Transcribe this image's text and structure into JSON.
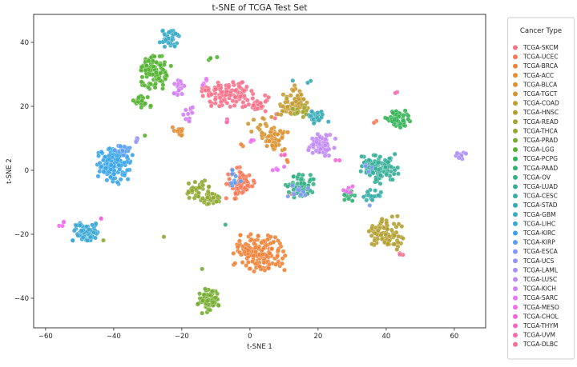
{
  "title": "t-SNE of TCGA Test Set",
  "axes": {
    "xlabel": "t-SNE 1",
    "ylabel": "t-SNE 2",
    "x_ticks": [
      -60,
      -40,
      -20,
      0,
      20,
      40,
      60
    ],
    "y_ticks": [
      -40,
      -20,
      0,
      20,
      40
    ],
    "x_range": [
      -63.5,
      69.2
    ],
    "y_range": [
      -49.25,
      48.75
    ],
    "text_color": "#262626",
    "axis_color": "#262626"
  },
  "legend": {
    "title": "Cancer Type",
    "border_color": "#cfcfcf",
    "background": "#ffffff"
  },
  "marker": {
    "radius": 2.7,
    "fill_opacity": 0.9,
    "edge_color": "#ffffff",
    "edge_opacity": 0.55,
    "edge_width": 0.5
  },
  "chart_data": {
    "type": "scatter",
    "title": "t-SNE of TCGA Test Set",
    "xlabel": "t-SNE 1",
    "ylabel": "t-SNE 2",
    "xlim": [
      -63.5,
      69.2
    ],
    "ylim": [
      -49.25,
      48.75
    ],
    "grid": false,
    "legend_position": "right-outside",
    "note": "clusters are [center_x, center_y, spread_x, spread_y, n_points] estimated from the figure",
    "series": [
      {
        "name": "TCGA-SKCM",
        "color": "#f77189",
        "clusters": [
          [
            -6.5,
            24,
            4.4,
            2.5,
            105
          ],
          [
            2.5,
            20.5,
            2,
            1.6,
            25
          ],
          [
            7.5,
            17,
            0.8,
            0.8,
            3
          ]
        ]
      },
      {
        "name": "TCGA-UCEC",
        "color": "#f77a58",
        "clusters": [
          [
            -3,
            -4,
            2.6,
            3,
            70
          ],
          [
            37,
            15,
            0.4,
            0.4,
            2
          ]
        ]
      },
      {
        "name": "TCGA-BRCA",
        "color": "#ef8339",
        "clusters": [
          [
            3,
            -26,
            4.6,
            3.3,
            150
          ],
          [
            12,
            2,
            0.8,
            0.8,
            2
          ],
          [
            -2,
            8,
            0.6,
            0.6,
            2
          ],
          [
            12.5,
            -7,
            0.3,
            0.3,
            1
          ]
        ]
      },
      {
        "name": "TCGA-ACC",
        "color": "#e68c32",
        "clusters": [
          [
            -20.5,
            12,
            1.4,
            1.1,
            13
          ]
        ]
      },
      {
        "name": "TCGA-BLCA",
        "color": "#dc9232",
        "clusters": [
          [
            7,
            10,
            2.3,
            2.5,
            55
          ]
        ]
      },
      {
        "name": "TCGA-TGCT",
        "color": "#d09732",
        "clusters": [
          [
            3,
            14,
            2.4,
            1.7,
            12
          ],
          [
            13,
            25.5,
            1,
            0.7,
            3
          ]
        ]
      },
      {
        "name": "TCGA-COAD",
        "color": "#c39c32",
        "clusters": [
          [
            13,
            21,
            2.8,
            2.2,
            68
          ]
        ]
      },
      {
        "name": "TCGA-HNSC",
        "color": "#b4a031",
        "clusters": [
          [
            40,
            -20,
            3,
            3.4,
            85
          ]
        ]
      },
      {
        "name": "TCGA-READ",
        "color": "#a3a531",
        "clusters": [
          [
            14.5,
            18.5,
            1.8,
            1.4,
            20
          ]
        ]
      },
      {
        "name": "TCGA-THCA",
        "color": "#8fa931",
        "clusters": [
          [
            -15,
            -6,
            2.1,
            1.6,
            38
          ],
          [
            -11,
            -9.5,
            1.9,
            1.5,
            30
          ],
          [
            -43,
            -22,
            0.2,
            0.2,
            1
          ],
          [
            -25.5,
            -21,
            0.2,
            0.2,
            1
          ]
        ]
      },
      {
        "name": "TCGA-PRAD",
        "color": "#76ad31",
        "clusters": [
          [
            -12,
            -41,
            2.2,
            2.4,
            70
          ],
          [
            -14,
            -31,
            0.2,
            0.2,
            1
          ]
        ]
      },
      {
        "name": "TCGA-LGG",
        "color": "#54b231",
        "clusters": [
          [
            -28,
            30.5,
            2.9,
            3.1,
            100
          ],
          [
            -31.5,
            21.5,
            1.7,
            1.3,
            22
          ],
          [
            -12,
            35,
            1.5,
            0.8,
            4
          ],
          [
            -31,
            11,
            0.2,
            0.2,
            1
          ]
        ]
      },
      {
        "name": "TCGA-PCPG",
        "color": "#32b354",
        "clusters": [
          [
            43,
            16,
            2.1,
            1.8,
            55
          ]
        ]
      },
      {
        "name": "TCGA-PAAD",
        "color": "#33b172",
        "clusters": [
          [
            29.5,
            -7.5,
            1.5,
            1.2,
            16
          ]
        ]
      },
      {
        "name": "TCGA-OV",
        "color": "#34af86",
        "clusters": [
          [
            15,
            -5,
            2.6,
            2.2,
            70
          ],
          [
            -7,
            -17,
            0.2,
            0.2,
            1
          ]
        ]
      },
      {
        "name": "TCGA-LUAD",
        "color": "#35ae98",
        "clusters": [
          [
            38,
            0.5,
            3.1,
            2.6,
            110
          ]
        ]
      },
      {
        "name": "TCGA-CESC",
        "color": "#35ada6",
        "clusters": [
          [
            36,
            -7.5,
            1.7,
            1.2,
            18
          ]
        ]
      },
      {
        "name": "TCGA-STAD",
        "color": "#36abb5",
        "clusters": [
          [
            20,
            16.5,
            1.7,
            1.5,
            24
          ],
          [
            16,
            27.5,
            2,
            0.6,
            3
          ]
        ]
      },
      {
        "name": "TCGA-GBM",
        "color": "#37aac4",
        "clusters": [
          [
            -24,
            41,
            1.9,
            1.7,
            40
          ]
        ]
      },
      {
        "name": "TCGA-LIHC",
        "color": "#38a8d4",
        "clusters": [
          [
            -48,
            -19.5,
            2.5,
            1.8,
            62
          ]
        ]
      },
      {
        "name": "TCGA-KIRC",
        "color": "#3aa5e8",
        "clusters": [
          [
            -40,
            2,
            3.2,
            3.5,
            130
          ]
        ]
      },
      {
        "name": "TCGA-KIRP",
        "color": "#5b9ef4",
        "clusters": [
          [
            -37.5,
            6.5,
            1.5,
            1.2,
            18
          ],
          [
            -4,
            -2.5,
            1.7,
            2,
            8
          ]
        ]
      },
      {
        "name": "TCGA-ESCA",
        "color": "#7e9af4",
        "clusters": [
          [
            14,
            -6.5,
            1.9,
            1.4,
            12
          ],
          [
            36,
            1,
            1.4,
            1,
            4
          ],
          [
            35,
            -11,
            0.2,
            0.2,
            1
          ]
        ]
      },
      {
        "name": "TCGA-UCS",
        "color": "#9795f4",
        "clusters": [
          [
            -33,
            9.5,
            0.8,
            0.6,
            5
          ]
        ]
      },
      {
        "name": "TCGA-LAML",
        "color": "#ad90f4",
        "clusters": [
          [
            62,
            4.5,
            1,
            0.9,
            12
          ]
        ]
      },
      {
        "name": "TCGA-LUSC",
        "color": "#c289f4",
        "clusters": [
          [
            21,
            8,
            2.3,
            2,
            62
          ]
        ]
      },
      {
        "name": "TCGA-KICH",
        "color": "#d380f4",
        "clusters": [
          [
            -21,
            26,
            1.2,
            2.1,
            15
          ],
          [
            -18,
            18.5,
            1.2,
            2.1,
            12
          ]
        ]
      },
      {
        "name": "TCGA-SARC",
        "color": "#e775f4",
        "clusters": [
          [
            8,
            1,
            1.2,
            1,
            5
          ],
          [
            -13,
            27,
            0.8,
            1.2,
            4
          ]
        ]
      },
      {
        "name": "TCGA-MESO",
        "color": "#f26bec",
        "clusters": [
          [
            -55,
            -16.5,
            0.6,
            0.9,
            4
          ],
          [
            29,
            -6,
            1.1,
            0.8,
            5
          ],
          [
            0,
            8.5,
            0.7,
            0.7,
            3
          ]
        ]
      },
      {
        "name": "TCGA-CHOL",
        "color": "#f565d7",
        "clusters": [
          [
            -44,
            -15.5,
            0.4,
            0.4,
            2
          ],
          [
            26,
            3,
            0.5,
            0.5,
            2
          ]
        ]
      },
      {
        "name": "TCGA-THYM",
        "color": "#f667c0",
        "clusters": [
          [
            10,
            5,
            0.6,
            0.6,
            3
          ]
        ]
      },
      {
        "name": "TCGA-UVM",
        "color": "#f76caa",
        "clusters": [
          [
            -7,
            15,
            0.6,
            0.5,
            3
          ],
          [
            43,
            24.5,
            0.4,
            0.4,
            2
          ]
        ]
      },
      {
        "name": "TCGA-DLBC",
        "color": "#f77098",
        "clusters": [
          [
            44,
            -26.5,
            0.5,
            0.5,
            3
          ]
        ]
      }
    ]
  }
}
